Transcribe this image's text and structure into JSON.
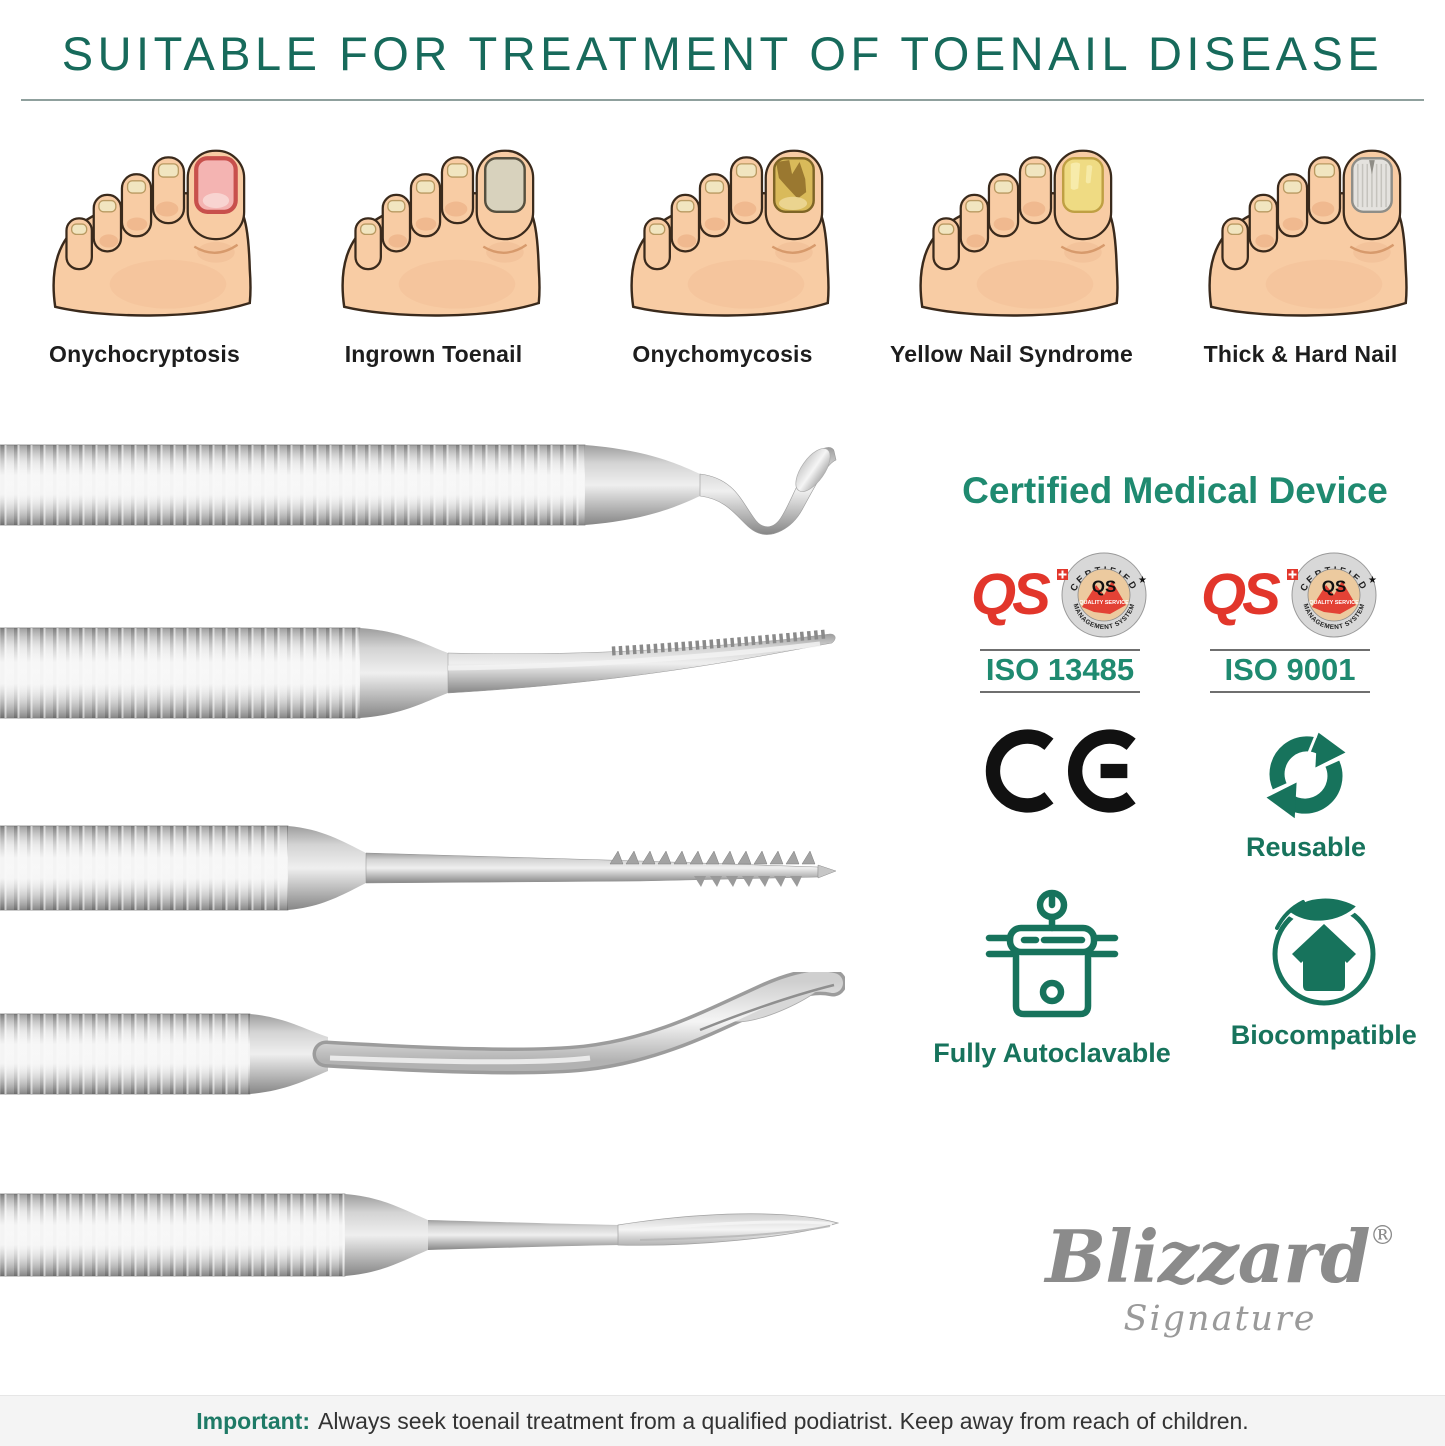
{
  "header": {
    "title": "SUITABLE FOR TREATMENT OF TOENAIL DISEASE"
  },
  "conditions": [
    {
      "label": "Onychocryptosis",
      "variant": "pink",
      "nail_fill": "#f4b4b2",
      "nail_border": "#c8504c"
    },
    {
      "label": "Ingrown Toenail",
      "variant": "beige",
      "nail_fill": "#d8d2bd",
      "nail_border": "#56503f"
    },
    {
      "label": "Onychomycosis",
      "variant": "fungal",
      "nail_fill": "#d9ba5a",
      "nail_border": "#7e6526"
    },
    {
      "label": "Yellow Nail Syndrome",
      "variant": "yellow",
      "nail_fill": "#efdb83",
      "nail_border": "#bfa043"
    },
    {
      "label": "Thick & Hard Nail",
      "variant": "thick",
      "nail_fill": "#e4e2de",
      "nail_border": "#8f8e88"
    }
  ],
  "certified": {
    "heading": "Certified Medical Device",
    "ce_mark": "CE",
    "badges": [
      {
        "logo_text": "QS",
        "seal_top": "CERTIFIED",
        "seal_center": "QS",
        "seal_quality": "QUALITY SERVICE",
        "seal_bottom": "MANAGEMENT SYSTEM",
        "iso_label": "ISO 13485"
      },
      {
        "logo_text": "QS",
        "seal_top": "CERTIFIED",
        "seal_center": "QS",
        "seal_quality": "QUALITY SERVICE",
        "seal_bottom": "MANAGEMENT SYSTEM",
        "iso_label": "ISO 9001"
      }
    ],
    "features": [
      {
        "label": "Reusable"
      },
      {
        "label": "Fully Autoclavable"
      },
      {
        "label": "Biocompatible"
      }
    ]
  },
  "brand": {
    "name": "Blizzard",
    "registered_mark": "®",
    "tagline": "Signature"
  },
  "footer": {
    "highlight": "Important:",
    "text": "Always seek toenail treatment from a qualified podiatrist. Keep away from reach of children."
  },
  "colors": {
    "title_teal": "#176a5b",
    "heading_green": "#1f8a70",
    "icon_green": "#17735c",
    "badge_red": "#e2362b",
    "skin": "#f8cca4",
    "skin_shade": "#f0b98f",
    "outline": "#3a2a1c",
    "small_nail": "#f1e5c0",
    "footer_bg": "#f4f4f4",
    "logo_gray": "#8b8b8b"
  }
}
